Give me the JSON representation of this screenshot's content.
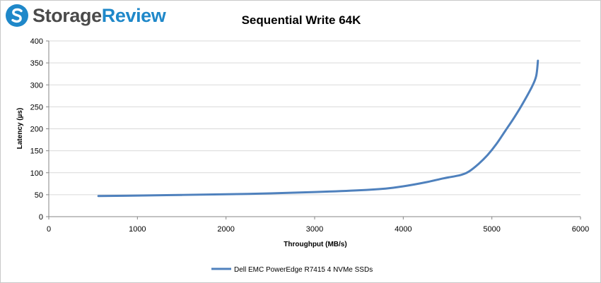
{
  "brand": {
    "name_part1": "Storage",
    "name_part2": "Review",
    "logo_icon": "storagereview-logo-icon",
    "colors": {
      "accent": "#1f88c9",
      "text": "#4a4a4a"
    }
  },
  "chart_data": {
    "type": "line",
    "title": "Sequential Write 64K",
    "xlabel": "Throughput  (MB/s)",
    "ylabel": "Latency (µs)",
    "xlim": [
      0,
      6000
    ],
    "ylim": [
      0,
      400
    ],
    "x_ticks": [
      0,
      1000,
      2000,
      3000,
      4000,
      5000,
      6000
    ],
    "y_ticks": [
      0,
      50,
      100,
      150,
      200,
      250,
      300,
      350,
      400
    ],
    "x_tick_labels": [
      "0",
      "1000",
      "2000",
      "3000",
      "4000",
      "5000",
      "6000"
    ],
    "y_tick_labels": [
      "0",
      "50",
      "100",
      "150",
      "200",
      "250",
      "300",
      "350",
      "400"
    ],
    "grid": "horizontal",
    "legend_position": "bottom",
    "series": [
      {
        "name": "Dell EMC PowerEdge R7415 4 NVMe SSDs",
        "color": "#4f81bd",
        "x": [
          560,
          1000,
          1500,
          2000,
          2500,
          3000,
          3500,
          3800,
          4000,
          4250,
          4450,
          4650,
          4750,
          4850,
          4950,
          5050,
          5150,
          5250,
          5350,
          5450,
          5500,
          5520
        ],
        "y": [
          47,
          48,
          49.5,
          51,
          53,
          56,
          60,
          64,
          69,
          78,
          87,
          95,
          104,
          120,
          140,
          165,
          195,
          225,
          258,
          295,
          320,
          355
        ]
      }
    ]
  }
}
